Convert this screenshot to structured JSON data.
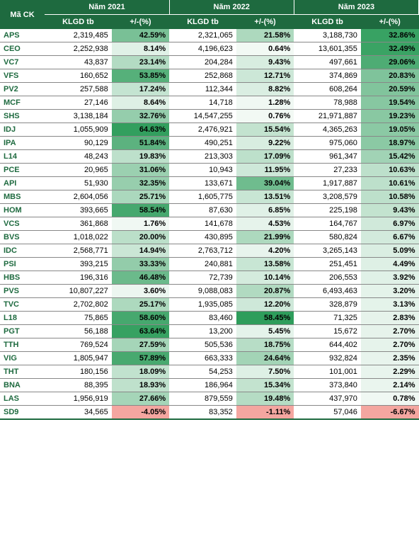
{
  "headers": {
    "ticker": "Mã CK",
    "year1": "Năm 2021",
    "year2": "Năm 2022",
    "year3": "Năm 2023",
    "vol": "KLGD tb",
    "chg": "+/-(%)"
  },
  "gradient": {
    "max_pos": "#2e9d5b",
    "min_pos": "#f4faf6",
    "neg": "#f4a6a0"
  },
  "rows": [
    {
      "t": "APS",
      "v1": "2,319,485",
      "p1": "42.59%",
      "v2": "2,321,065",
      "p2": "21.58%",
      "v3": "3,188,730",
      "p3": "32.86%",
      "c1": 0.62,
      "c2": 0.36,
      "c3": 0.95
    },
    {
      "t": "CEO",
      "v1": "2,252,938",
      "p1": "8.14%",
      "v2": "4,196,623",
      "p2": "0.64%",
      "v3": "13,601,355",
      "p3": "32.49%",
      "c1": 0.1,
      "c2": 0.01,
      "c3": 0.94
    },
    {
      "t": "VC7",
      "v1": "43,837",
      "p1": "23.14%",
      "v2": "204,284",
      "p2": "9.43%",
      "v3": "497,661",
      "p3": "29.06%",
      "c1": 0.33,
      "c2": 0.14,
      "c3": 0.84
    },
    {
      "t": "VFS",
      "v1": "160,652",
      "p1": "53.85%",
      "v2": "252,868",
      "p2": "12.71%",
      "v3": "374,869",
      "p3": "20.83%",
      "c1": 0.8,
      "c2": 0.2,
      "c3": 0.59
    },
    {
      "t": "PV2",
      "v1": "257,588",
      "p1": "17.24%",
      "v2": "112,344",
      "p2": "8.82%",
      "v3": "608,264",
      "p3": "20.59%",
      "c1": 0.24,
      "c2": 0.13,
      "c3": 0.58
    },
    {
      "t": "MCF",
      "v1": "27,146",
      "p1": "8.64%",
      "v2": "14,718",
      "p2": "1.28%",
      "v3": "78,988",
      "p3": "19.54%",
      "c1": 0.11,
      "c2": 0.02,
      "c3": 0.55
    },
    {
      "t": "SHS",
      "v1": "3,138,184",
      "p1": "32.76%",
      "v2": "14,547,255",
      "p2": "0.76%",
      "v3": "21,971,887",
      "p3": "19.23%",
      "c1": 0.48,
      "c2": 0.01,
      "c3": 0.54
    },
    {
      "t": "IDJ",
      "v1": "1,055,909",
      "p1": "64.63%",
      "v2": "2,476,921",
      "p2": "15.54%",
      "v3": "4,365,263",
      "p3": "19.05%",
      "c1": 0.98,
      "c2": 0.25,
      "c3": 0.53
    },
    {
      "t": "IPA",
      "v1": "90,129",
      "p1": "51.84%",
      "v2": "490,251",
      "p2": "9.22%",
      "v3": "975,060",
      "p3": "18.97%",
      "c1": 0.77,
      "c2": 0.14,
      "c3": 0.53
    },
    {
      "t": "L14",
      "v1": "48,243",
      "p1": "19.83%",
      "v2": "213,303",
      "p2": "17.09%",
      "v3": "961,347",
      "p3": "15.42%",
      "c1": 0.28,
      "c2": 0.28,
      "c3": 0.42
    },
    {
      "t": "PCE",
      "v1": "20,965",
      "p1": "31.06%",
      "v2": "10,943",
      "p2": "11.95%",
      "v3": "27,233",
      "p3": "10.63%",
      "c1": 0.45,
      "c2": 0.19,
      "c3": 0.28
    },
    {
      "t": "API",
      "v1": "51,930",
      "p1": "32.35%",
      "v2": "133,671",
      "p2": "39.04%",
      "v3": "1,917,887",
      "p3": "10.61%",
      "c1": 0.47,
      "c2": 0.67,
      "c3": 0.28
    },
    {
      "t": "MBS",
      "v1": "2,604,056",
      "p1": "25.71%",
      "v2": "1,605,775",
      "p2": "13.51%",
      "v3": "3,208,579",
      "p3": "10.58%",
      "c1": 0.37,
      "c2": 0.22,
      "c3": 0.28
    },
    {
      "t": "HOM",
      "v1": "393,665",
      "p1": "58.54%",
      "v2": "87,630",
      "p2": "6.85%",
      "v3": "225,198",
      "p3": "9.43%",
      "c1": 0.88,
      "c2": 0.1,
      "c3": 0.25
    },
    {
      "t": "VCS",
      "v1": "361,868",
      "p1": "1.76%",
      "v2": "141,678",
      "p2": "4.53%",
      "v3": "164,767",
      "p3": "6.97%",
      "c1": 0.02,
      "c2": 0.07,
      "c3": 0.18
    },
    {
      "t": "BVS",
      "v1": "1,018,022",
      "p1": "20.00%",
      "v2": "430,895",
      "p2": "21.99%",
      "v3": "580,824",
      "p3": "6.67%",
      "c1": 0.29,
      "c2": 0.36,
      "c3": 0.17
    },
    {
      "t": "IDC",
      "v1": "2,568,771",
      "p1": "14.94%",
      "v2": "2,763,712",
      "p2": "4.20%",
      "v3": "3,265,143",
      "p3": "5.09%",
      "c1": 0.21,
      "c2": 0.06,
      "c3": 0.13
    },
    {
      "t": "PSI",
      "v1": "393,215",
      "p1": "33.33%",
      "v2": "240,881",
      "p2": "13.58%",
      "v3": "251,451",
      "p3": "4.49%",
      "c1": 0.49,
      "c2": 0.22,
      "c3": 0.11
    },
    {
      "t": "HBS",
      "v1": "196,316",
      "p1": "46.48%",
      "v2": "72,739",
      "p2": "10.14%",
      "v3": "206,553",
      "p3": "3.92%",
      "c1": 0.69,
      "c2": 0.16,
      "c3": 0.1
    },
    {
      "t": "PVS",
      "v1": "10,807,227",
      "p1": "3.60%",
      "v2": "9,088,083",
      "p2": "20.87%",
      "v3": "6,493,463",
      "p3": "3.20%",
      "c1": 0.04,
      "c2": 0.34,
      "c3": 0.08
    },
    {
      "t": "TVC",
      "v1": "2,702,802",
      "p1": "25.17%",
      "v2": "1,935,085",
      "p2": "12.20%",
      "v3": "328,879",
      "p3": "3.13%",
      "c1": 0.36,
      "c2": 0.19,
      "c3": 0.08
    },
    {
      "t": "L18",
      "v1": "75,865",
      "p1": "58.60%",
      "v2": "83,460",
      "p2": "58.45%",
      "v3": "71,325",
      "p3": "2.83%",
      "c1": 0.88,
      "c2": 1.0,
      "c3": 0.07
    },
    {
      "t": "PGT",
      "v1": "56,188",
      "p1": "63.64%",
      "v2": "13,200",
      "p2": "5.45%",
      "v3": "15,672",
      "p3": "2.70%",
      "c1": 0.96,
      "c2": 0.08,
      "c3": 0.07
    },
    {
      "t": "TTH",
      "v1": "769,524",
      "p1": "27.59%",
      "v2": "505,536",
      "p2": "18.75%",
      "v3": "644,402",
      "p3": "2.70%",
      "c1": 0.4,
      "c2": 0.31,
      "c3": 0.07
    },
    {
      "t": "VIG",
      "v1": "1,805,947",
      "p1": "57.89%",
      "v2": "663,333",
      "p2": "24.64%",
      "v3": "932,824",
      "p3": "2.35%",
      "c1": 0.87,
      "c2": 0.41,
      "c3": 0.06
    },
    {
      "t": "THT",
      "v1": "180,156",
      "p1": "18.09%",
      "v2": "54,253",
      "p2": "7.50%",
      "v3": "101,001",
      "p3": "2.29%",
      "c1": 0.26,
      "c2": 0.11,
      "c3": 0.06
    },
    {
      "t": "BNA",
      "v1": "88,395",
      "p1": "18.93%",
      "v2": "186,964",
      "p2": "15.34%",
      "v3": "373,840",
      "p3": "2.14%",
      "c1": 0.27,
      "c2": 0.25,
      "c3": 0.05
    },
    {
      "t": "LAS",
      "v1": "1,956,919",
      "p1": "27.66%",
      "v2": "879,559",
      "p2": "19.48%",
      "v3": "437,970",
      "p3": "0.78%",
      "c1": 0.4,
      "c2": 0.32,
      "c3": 0.02
    },
    {
      "t": "SD9",
      "v1": "34,565",
      "p1": "-4.05%",
      "v2": "83,352",
      "p2": "-1.11%",
      "v3": "57,046",
      "p3": "-6.67%",
      "c1": -1,
      "c2": -1,
      "c3": -1
    }
  ]
}
